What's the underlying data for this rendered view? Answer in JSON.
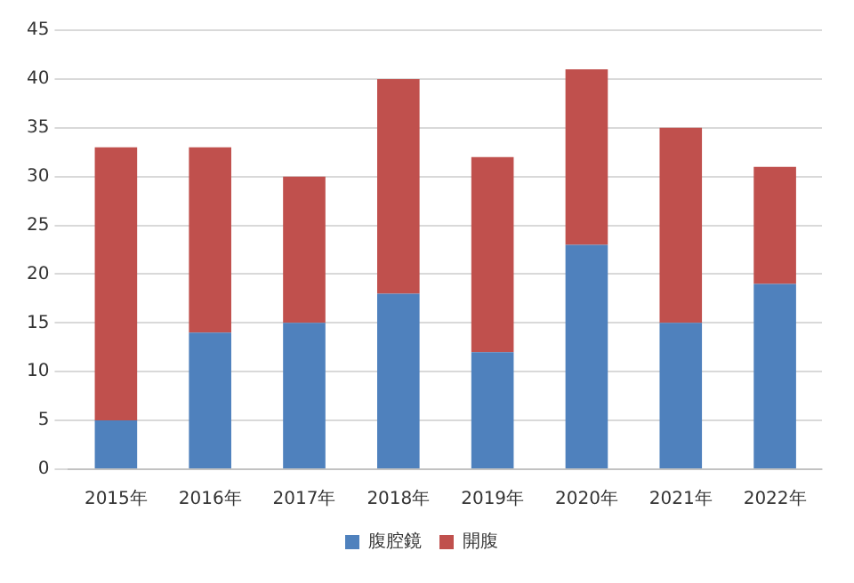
{
  "chart_data": {
    "type": "bar",
    "stacked": true,
    "categories": [
      "2015年",
      "2016年",
      "2017年",
      "2018年",
      "2019年",
      "2020年",
      "2021年",
      "2022年"
    ],
    "series": [
      {
        "name": "腹腔鏡",
        "color": "#4f81bd",
        "values": [
          5,
          14,
          15,
          18,
          12,
          23,
          15,
          19
        ]
      },
      {
        "name": "開腹",
        "color": "#c0504d",
        "values": [
          28,
          19,
          15,
          22,
          20,
          18,
          20,
          12
        ]
      }
    ],
    "ylim": [
      0,
      45
    ],
    "yticks": [
      0,
      5,
      10,
      15,
      20,
      25,
      30,
      35,
      40,
      45
    ],
    "grid": "y",
    "legend": "bottom"
  }
}
